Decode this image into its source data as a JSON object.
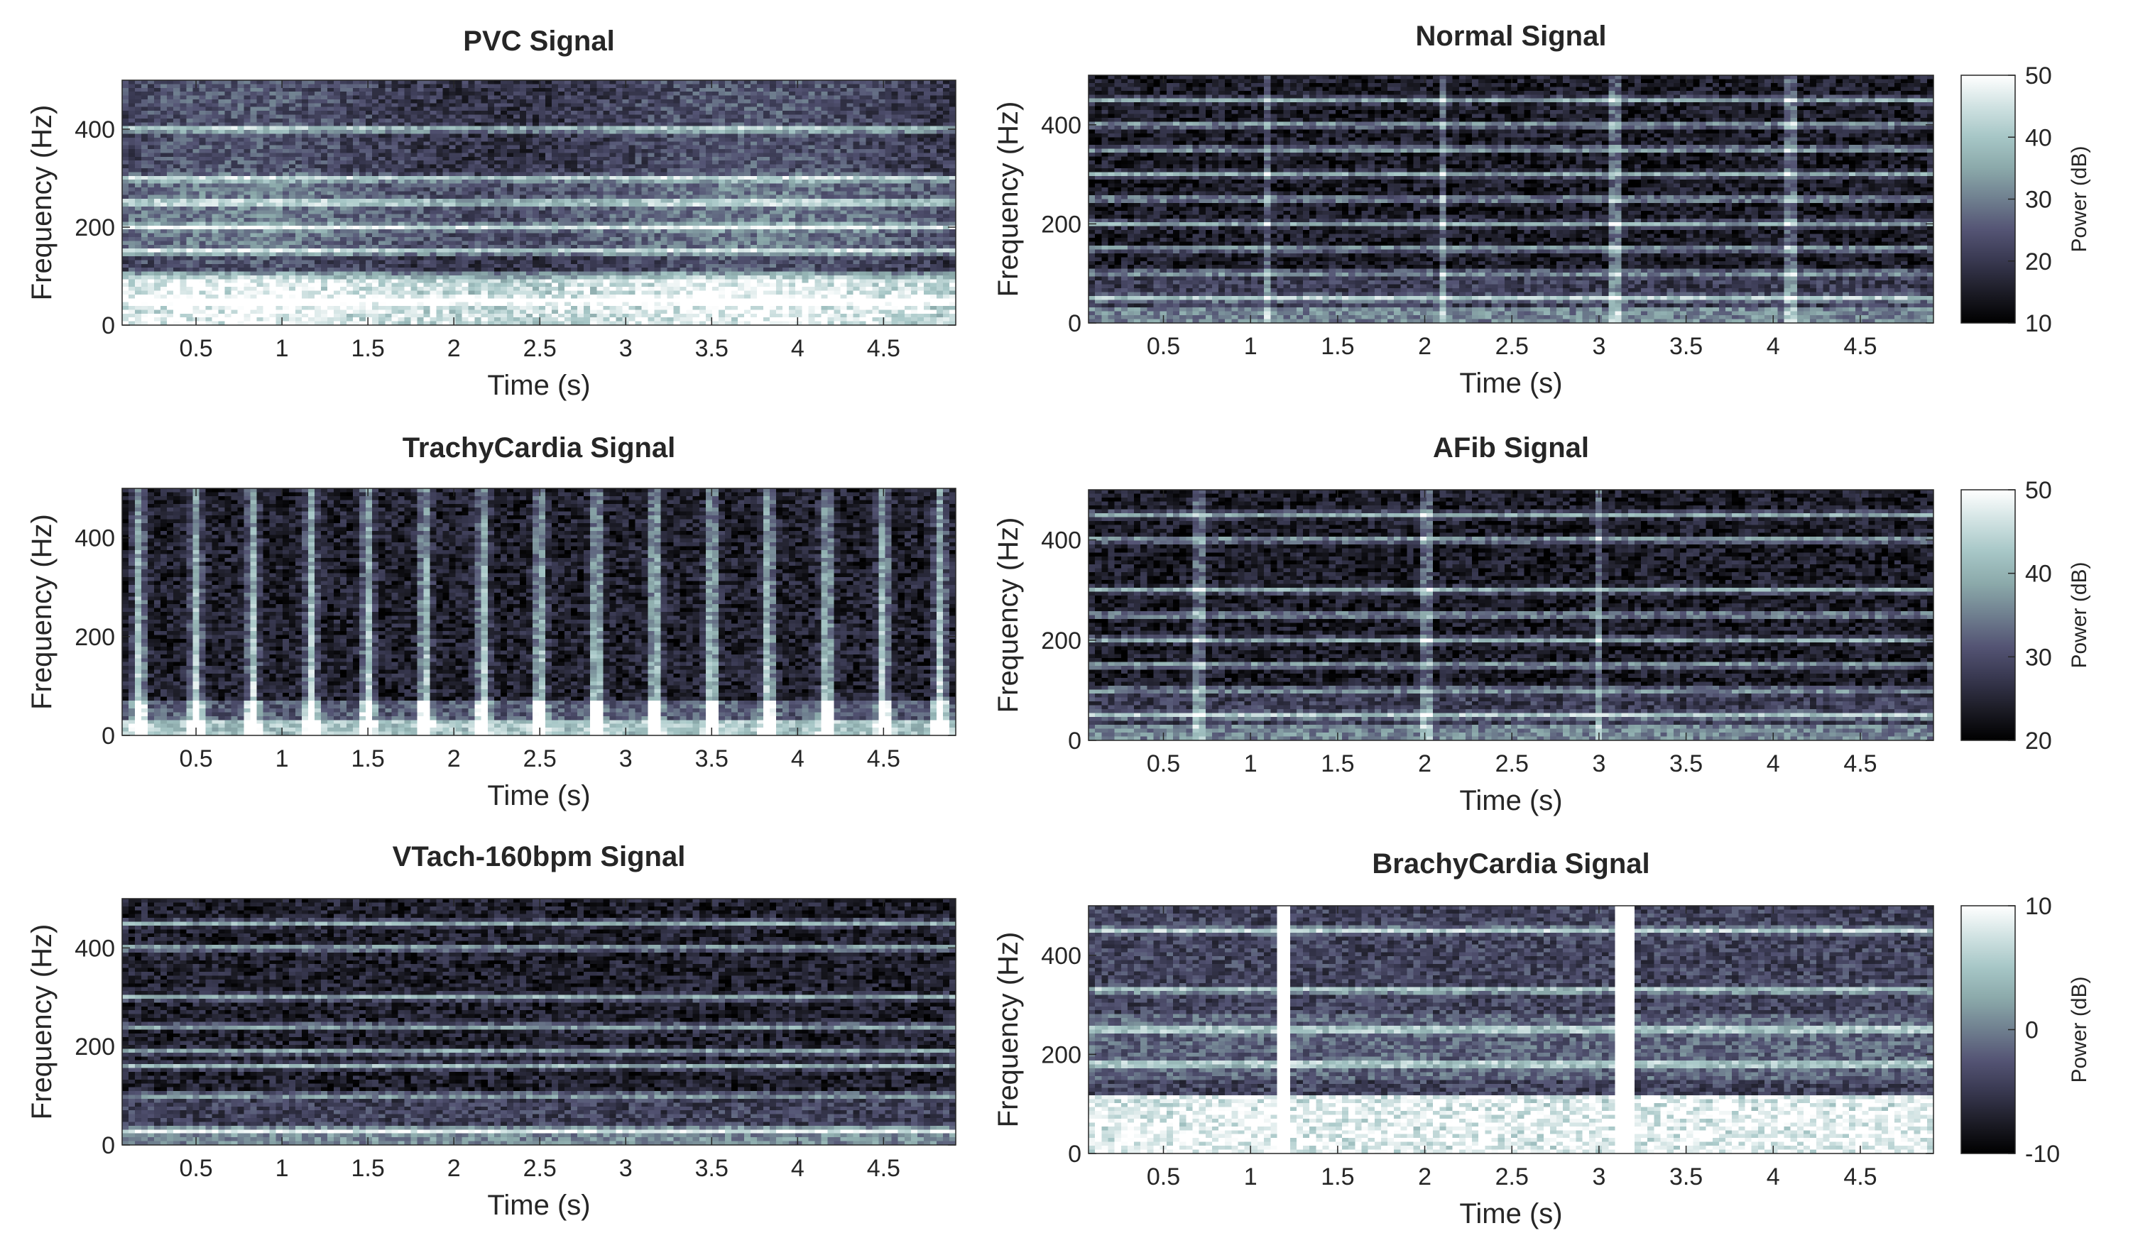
{
  "colors": {
    "colormap": [
      "#000000",
      "#1c1c26",
      "#383850",
      "#545474",
      "#6f7f8f",
      "#8ba9aa",
      "#a6c6c6",
      "#d0e2e2",
      "#ffffff"
    ]
  },
  "chart_data": [
    {
      "type": "heatmap",
      "title": "PVC Signal",
      "xlabel": "Time (s)",
      "ylabel": "Frequency (Hz)",
      "xlim": [
        0.07,
        4.92
      ],
      "ylim": [
        0,
        500
      ],
      "xticks": [
        0.5,
        1,
        1.5,
        2,
        2.5,
        3,
        3.5,
        4,
        4.5
      ],
      "xtick_labels": [
        "0.5",
        "1",
        "1.5",
        "2",
        "2.5",
        "3",
        "3.5",
        "4",
        "4.5"
      ],
      "yticks": [
        0,
        200,
        400
      ],
      "ytick_labels": [
        "0",
        "200",
        "400"
      ],
      "colorbar": null,
      "pattern": {
        "kind": "pvc",
        "harmonics_hz": [
          50,
          100,
          150,
          200,
          250,
          300,
          400
        ],
        "base_level": 0.3,
        "low_freq_bright_below_hz": 90
      }
    },
    {
      "type": "heatmap",
      "title": "Normal Signal",
      "xlabel": "Time (s)",
      "ylabel": "Frequency (Hz)",
      "xlim": [
        0.07,
        4.92
      ],
      "ylim": [
        0,
        500
      ],
      "xticks": [
        0.5,
        1,
        1.5,
        2,
        2.5,
        3,
        3.5,
        4,
        4.5
      ],
      "xtick_labels": [
        "0.5",
        "1",
        "1.5",
        "2",
        "2.5",
        "3",
        "3.5",
        "4",
        "4.5"
      ],
      "yticks": [
        0,
        200,
        400
      ],
      "ytick_labels": [
        "0",
        "200",
        "400"
      ],
      "colorbar": {
        "label": "Power (dB)",
        "range": [
          10,
          50
        ],
        "ticks": [
          10,
          20,
          30,
          40,
          50
        ],
        "tick_labels": [
          "10",
          "20",
          "30",
          "40",
          "50"
        ]
      },
      "pattern": {
        "kind": "harmonic",
        "harmonics_hz": [
          50,
          100,
          150,
          200,
          250,
          300,
          350,
          400,
          450
        ],
        "base_level": 0.12,
        "beat_times_s": [
          1.1,
          2.1,
          3.1,
          4.1
        ]
      }
    },
    {
      "type": "heatmap",
      "title": "TrachyCardia Signal",
      "xlabel": "Time (s)",
      "ylabel": "Frequency (Hz)",
      "xlim": [
        0.07,
        4.92
      ],
      "ylim": [
        0,
        500
      ],
      "xticks": [
        0.5,
        1,
        1.5,
        2,
        2.5,
        3,
        3.5,
        4,
        4.5
      ],
      "xtick_labels": [
        "0.5",
        "1",
        "1.5",
        "2",
        "2.5",
        "3",
        "3.5",
        "4",
        "4.5"
      ],
      "yticks": [
        0,
        200,
        400
      ],
      "ytick_labels": [
        "0",
        "200",
        "400"
      ],
      "colorbar": null,
      "pattern": {
        "kind": "pulses",
        "harmonics_hz": [],
        "base_level": 0.14,
        "pulse_times_s": [
          0.17,
          0.5,
          0.83,
          1.17,
          1.5,
          1.83,
          2.17,
          2.5,
          2.83,
          3.17,
          3.5,
          3.83,
          4.17,
          4.5,
          4.83
        ]
      }
    },
    {
      "type": "heatmap",
      "title": "AFib Signal",
      "xlabel": "Time (s)",
      "ylabel": "Frequency (Hz)",
      "xlim": [
        0.07,
        4.92
      ],
      "ylim": [
        0,
        500
      ],
      "xticks": [
        0.5,
        1,
        1.5,
        2,
        2.5,
        3,
        3.5,
        4,
        4.5
      ],
      "xtick_labels": [
        "0.5",
        "1",
        "1.5",
        "2",
        "2.5",
        "3",
        "3.5",
        "4",
        "4.5"
      ],
      "yticks": [
        0,
        200,
        400
      ],
      "ytick_labels": [
        "0",
        "200",
        "400"
      ],
      "colorbar": {
        "label": "Power (dB)",
        "range": [
          20,
          50
        ],
        "ticks": [
          20,
          30,
          40,
          50
        ],
        "tick_labels": [
          "20",
          "30",
          "40",
          "50"
        ]
      },
      "pattern": {
        "kind": "harmonic",
        "harmonics_hz": [
          50,
          100,
          150,
          200,
          250,
          300,
          400,
          450
        ],
        "base_level": 0.12,
        "beat_times_s": [
          0.7,
          2.0,
          3.0
        ]
      }
    },
    {
      "type": "heatmap",
      "title": "VTach-160bpm Signal",
      "xlabel": "Time (s)",
      "ylabel": "Frequency (Hz)",
      "xlim": [
        0.07,
        4.92
      ],
      "ylim": [
        0,
        500
      ],
      "xticks": [
        0.5,
        1,
        1.5,
        2,
        2.5,
        3,
        3.5,
        4,
        4.5
      ],
      "xtick_labels": [
        "0.5",
        "1",
        "1.5",
        "2",
        "2.5",
        "3",
        "3.5",
        "4",
        "4.5"
      ],
      "yticks": [
        0,
        200,
        400
      ],
      "ytick_labels": [
        "0",
        "200",
        "400"
      ],
      "colorbar": null,
      "pattern": {
        "kind": "harmonic",
        "harmonics_hz": [
          30,
          100,
          160,
          190,
          240,
          300,
          400,
          450
        ],
        "base_level": 0.14,
        "beat_times_s": []
      }
    },
    {
      "type": "heatmap",
      "title": "BrachyCardia Signal",
      "xlabel": "Time (s)",
      "ylabel": "Frequency (Hz)",
      "xlim": [
        0.07,
        4.92
      ],
      "ylim": [
        0,
        500
      ],
      "xticks": [
        0.5,
        1,
        1.5,
        2,
        2.5,
        3,
        3.5,
        4,
        4.5
      ],
      "xtick_labels": [
        "0.5",
        "1",
        "1.5",
        "2",
        "2.5",
        "3",
        "3.5",
        "4",
        "4.5"
      ],
      "yticks": [
        0,
        200,
        400
      ],
      "ytick_labels": [
        "0",
        "200",
        "400"
      ],
      "colorbar": {
        "label": "Power (dB)",
        "range": [
          -10,
          10
        ],
        "ticks": [
          -10,
          0,
          10
        ],
        "tick_labels": [
          "-10",
          "0",
          "10"
        ]
      },
      "pattern": {
        "kind": "brachy",
        "harmonics_hz": [
          180,
          250,
          330,
          450
        ],
        "base_level": 0.3,
        "beat_times_s": [
          1.2,
          3.15
        ]
      }
    }
  ]
}
